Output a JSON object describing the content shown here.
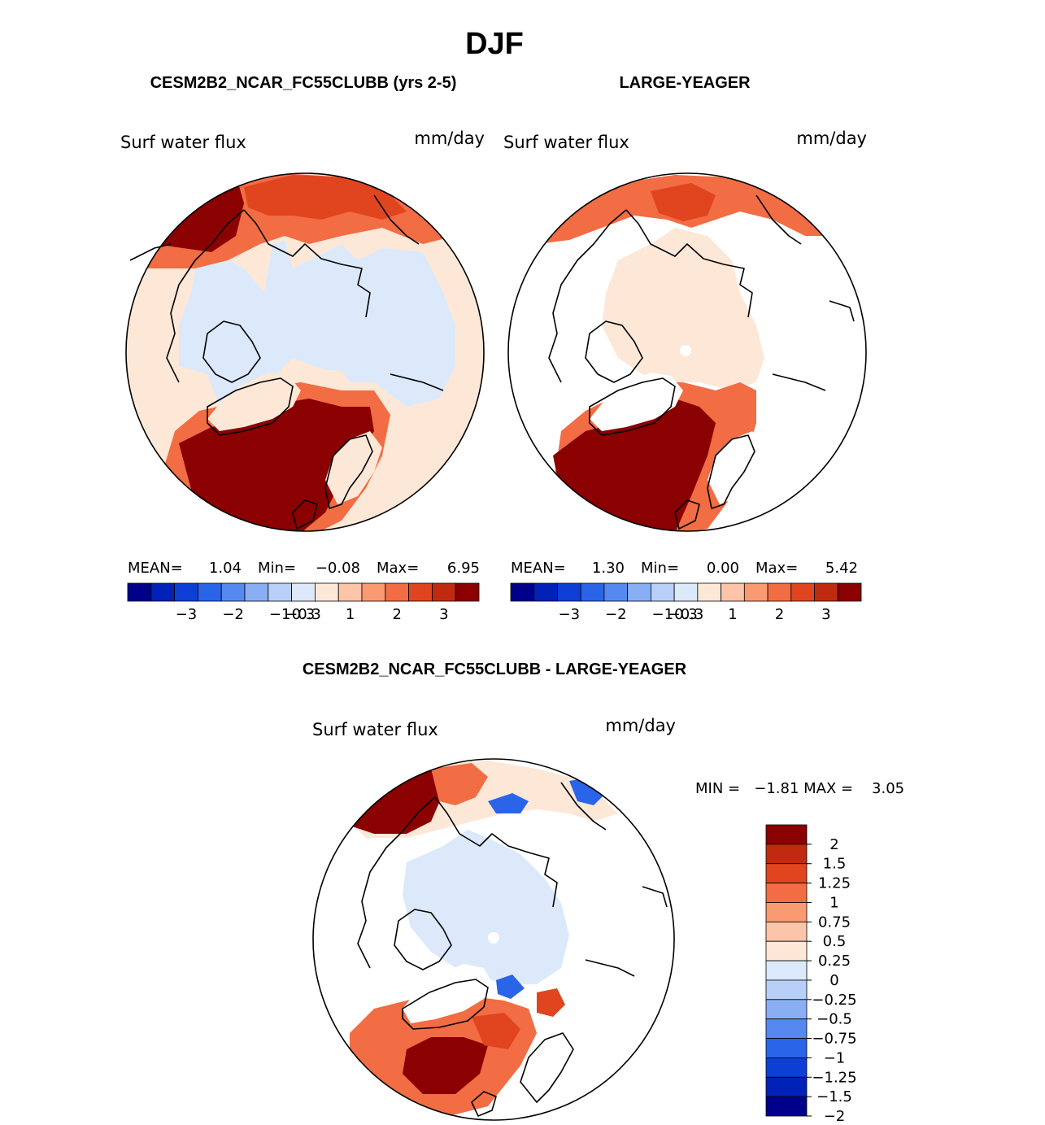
{
  "main_title": "DJF",
  "colors": {
    "scale": [
      "#00008b",
      "#0022b8",
      "#0d3fd6",
      "#2a64e8",
      "#5589ef",
      "#8aaef3",
      "#b8cff8",
      "#dbe9fb",
      "#fde8d8",
      "#fcc4a8",
      "#f99a73",
      "#f26c44",
      "#e0451f",
      "#c02b10",
      "#8b0000"
    ],
    "ocean_light": "#dbe9fb",
    "pale_pos": "#fde8d8",
    "deep_red": "#8b0000",
    "mid_red": "#e0451f",
    "orange": "#f26c44",
    "blue": "#2a64e8",
    "coast": "#000000"
  },
  "chart_data": [
    {
      "type": "heatmap",
      "projection": "north-polar-stereographic",
      "title": "CESM2B2_NCAR_FC55CLUBB (yrs 2-5)",
      "variable": "Surf water flux",
      "units": "mm/day",
      "stats": {
        "mean_label": "MEAN=",
        "mean": "1.04",
        "min_label": "Min=",
        "min": "−0.08",
        "max_label": "Max=",
        "max": "6.95"
      },
      "colorbar_ticks": [
        "−3",
        "−2",
        "−1",
        "−0.3",
        "0.3",
        "1",
        "2",
        "3"
      ]
    },
    {
      "type": "heatmap",
      "projection": "north-polar-stereographic",
      "title": "LARGE-YEAGER",
      "variable": "Surf water flux",
      "units": "mm/day",
      "stats": {
        "mean_label": "MEAN=",
        "mean": "1.30",
        "min_label": "Min=",
        "min": "0.00",
        "max_label": "Max=",
        "max": "5.42"
      },
      "colorbar_ticks": [
        "−3",
        "−2",
        "−1",
        "−0.3",
        "0.3",
        "1",
        "2",
        "3"
      ]
    },
    {
      "type": "heatmap",
      "projection": "north-polar-stereographic",
      "title": "CESM2B2_NCAR_FC55CLUBB - LARGE-YEAGER",
      "variable": "Surf water flux",
      "units": "mm/day",
      "stats_text": "MIN =   −1.81 MAX =    3.05",
      "colorbar_ticks": [
        "2",
        "1.5",
        "1.25",
        "1",
        "0.75",
        "0.5",
        "0.25",
        "0",
        "−0.25",
        "−0.5",
        "−0.75",
        "−1",
        "−1.25",
        "−1.5",
        "−2"
      ]
    }
  ]
}
